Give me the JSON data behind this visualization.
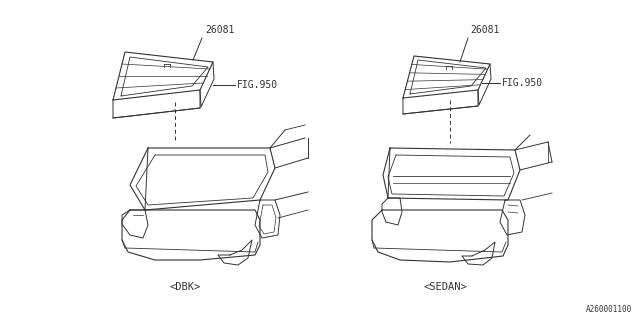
{
  "bg_color": "#ffffff",
  "line_color": "#333333",
  "text_color": "#333333",
  "diagram_id": "A260001100",
  "part_number_left": "26081",
  "part_number_right": "26081",
  "fig_ref": "FIG.950",
  "left_label": "<DBK>",
  "right_label": "<SEDAN>",
  "font_size_small": 7,
  "font_size_label": 7.5
}
